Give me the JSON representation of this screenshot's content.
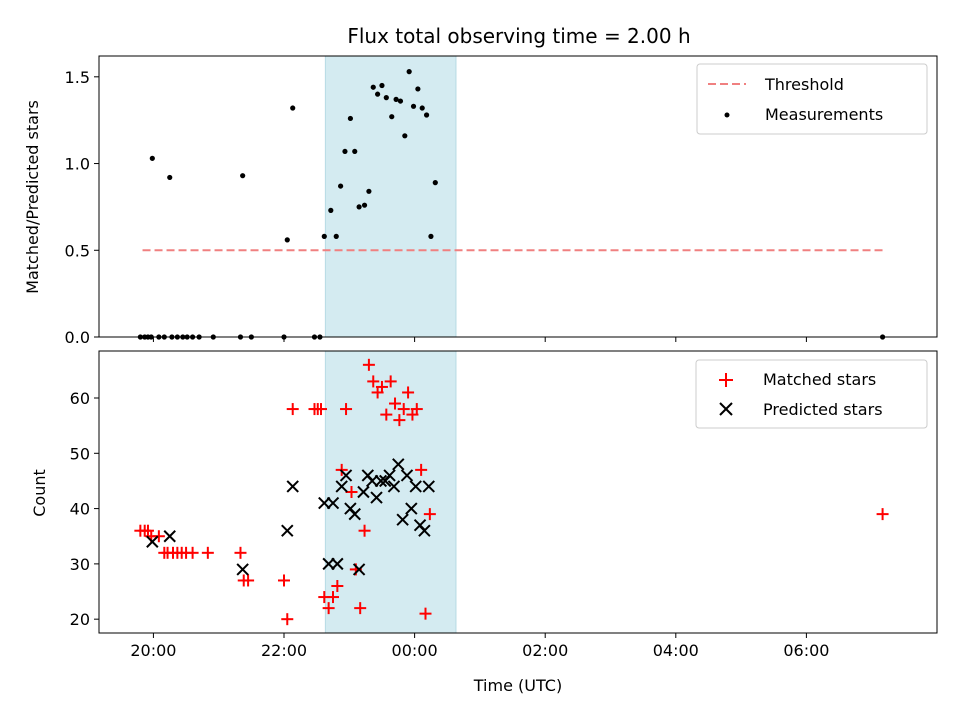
{
  "chart_data": [
    {
      "type": "scatter",
      "title": "Flux total observing time = 2.00 h",
      "xlabel": "",
      "ylabel": "Matched/Predicted stars",
      "x_axis": "time",
      "xlim": [
        "19:10",
        "08:00"
      ],
      "ylim": [
        0,
        1.62
      ],
      "yticks": [
        0.0,
        0.5,
        1.0,
        1.5
      ],
      "ytick_labels": [
        "0.0",
        "0.5",
        "1.0",
        "1.5"
      ],
      "shaded_window": [
        "22:38",
        "00:38"
      ],
      "shade_color": "#d4ebf1",
      "legend_position": "top-right",
      "series": [
        {
          "name": "Threshold",
          "style": "dashed-line",
          "color": "#f08080",
          "points": [
            [
              "19:50",
              0.5
            ],
            [
              "07:10",
              0.5
            ]
          ]
        },
        {
          "name": "Measurements",
          "style": "dot",
          "color": "#000000",
          "points": [
            [
              "19:48",
              0
            ],
            [
              "19:52",
              0
            ],
            [
              "19:55",
              0
            ],
            [
              "19:58",
              0
            ],
            [
              "20:05",
              0
            ],
            [
              "20:10",
              0
            ],
            [
              "20:17",
              0
            ],
            [
              "20:22",
              0
            ],
            [
              "20:27",
              0
            ],
            [
              "20:31",
              0
            ],
            [
              "20:36",
              0
            ],
            [
              "20:42",
              0
            ],
            [
              "20:55",
              0
            ],
            [
              "21:20",
              0
            ],
            [
              "21:30",
              0
            ],
            [
              "22:00",
              0
            ],
            [
              "22:28",
              0
            ],
            [
              "22:33",
              0
            ],
            [
              "07:10",
              0
            ],
            [
              "19:59",
              1.03
            ],
            [
              "20:15",
              0.92
            ],
            [
              "21:22",
              0.93
            ],
            [
              "22:03",
              0.56
            ],
            [
              "22:08",
              1.32
            ],
            [
              "22:37",
              0.58
            ],
            [
              "22:43",
              0.73
            ],
            [
              "22:48",
              0.58
            ],
            [
              "22:52",
              0.87
            ],
            [
              "22:56",
              1.07
            ],
            [
              "23:01",
              1.26
            ],
            [
              "23:05",
              1.07
            ],
            [
              "23:09",
              0.75
            ],
            [
              "23:14",
              0.76
            ],
            [
              "23:18",
              0.84
            ],
            [
              "23:22",
              1.44
            ],
            [
              "23:26",
              1.4
            ],
            [
              "23:30",
              1.45
            ],
            [
              "23:34",
              1.38
            ],
            [
              "23:39",
              1.27
            ],
            [
              "23:43",
              1.37
            ],
            [
              "23:47",
              1.36
            ],
            [
              "23:51",
              1.16
            ],
            [
              "23:55",
              1.53
            ],
            [
              "23:59",
              1.33
            ],
            [
              "00:03",
              1.43
            ],
            [
              "00:07",
              1.32
            ],
            [
              "00:11",
              1.28
            ],
            [
              "00:15",
              0.58
            ],
            [
              "00:19",
              0.89
            ]
          ]
        }
      ]
    },
    {
      "type": "scatter",
      "title": "",
      "xlabel": "Time (UTC)",
      "ylabel": "Count",
      "x_axis": "time",
      "xlim": [
        "19:10",
        "08:00"
      ],
      "ylim": [
        17.5,
        68.5
      ],
      "yticks": [
        20,
        30,
        40,
        50,
        60
      ],
      "ytick_labels": [
        "20",
        "30",
        "40",
        "50",
        "60"
      ],
      "xticks": [
        "20:00",
        "22:00",
        "00:00",
        "02:00",
        "04:00",
        "06:00"
      ],
      "xtick_labels": [
        "20:00",
        "22:00",
        "00:00",
        "02:00",
        "04:00",
        "06:00"
      ],
      "shaded_window": [
        "22:38",
        "00:38"
      ],
      "shade_color": "#d4ebf1",
      "legend_position": "top-right",
      "series": [
        {
          "name": "Matched stars",
          "style": "plus",
          "color": "#ff0000",
          "points": [
            [
              "19:48",
              36
            ],
            [
              "19:52",
              36
            ],
            [
              "19:55",
              36
            ],
            [
              "19:58",
              35
            ],
            [
              "20:05",
              35
            ],
            [
              "20:10",
              32
            ],
            [
              "20:13",
              32
            ],
            [
              "20:18",
              32
            ],
            [
              "20:22",
              32
            ],
            [
              "20:26",
              32
            ],
            [
              "20:30",
              32
            ],
            [
              "20:36",
              32
            ],
            [
              "20:50",
              32
            ],
            [
              "21:20",
              32
            ],
            [
              "21:23",
              27
            ],
            [
              "21:27",
              27
            ],
            [
              "22:00",
              27
            ],
            [
              "22:03",
              20
            ],
            [
              "22:08",
              58
            ],
            [
              "22:28",
              58
            ],
            [
              "22:31",
              58
            ],
            [
              "22:34",
              58
            ],
            [
              "22:37",
              24
            ],
            [
              "22:41",
              22
            ],
            [
              "22:45",
              24
            ],
            [
              "22:49",
              26
            ],
            [
              "22:53",
              47
            ],
            [
              "22:57",
              58
            ],
            [
              "23:02",
              43
            ],
            [
              "23:06",
              29
            ],
            [
              "23:10",
              22
            ],
            [
              "23:14",
              36
            ],
            [
              "23:18",
              66
            ],
            [
              "23:22",
              63
            ],
            [
              "23:26",
              61
            ],
            [
              "23:30",
              62
            ],
            [
              "23:34",
              57
            ],
            [
              "23:38",
              63
            ],
            [
              "23:42",
              59
            ],
            [
              "23:46",
              56
            ],
            [
              "23:50",
              58
            ],
            [
              "23:54",
              61
            ],
            [
              "23:58",
              57
            ],
            [
              "00:02",
              58
            ],
            [
              "00:06",
              47
            ],
            [
              "00:10",
              21
            ],
            [
              "00:14",
              39
            ],
            [
              "07:10",
              39
            ]
          ]
        },
        {
          "name": "Predicted stars",
          "style": "x",
          "color": "#000000",
          "points": [
            [
              "19:59",
              34
            ],
            [
              "20:15",
              35
            ],
            [
              "21:22",
              29
            ],
            [
              "22:03",
              36
            ],
            [
              "22:08",
              44
            ],
            [
              "22:37",
              41
            ],
            [
              "22:41",
              30
            ],
            [
              "22:45",
              41
            ],
            [
              "22:49",
              30
            ],
            [
              "22:53",
              44
            ],
            [
              "22:57",
              46
            ],
            [
              "23:01",
              40
            ],
            [
              "23:05",
              39
            ],
            [
              "23:09",
              29
            ],
            [
              "23:13",
              43
            ],
            [
              "23:17",
              46
            ],
            [
              "23:21",
              45
            ],
            [
              "23:25",
              42
            ],
            [
              "23:29",
              45
            ],
            [
              "23:33",
              45
            ],
            [
              "23:37",
              46
            ],
            [
              "23:41",
              44
            ],
            [
              "23:45",
              48
            ],
            [
              "23:49",
              38
            ],
            [
              "23:53",
              46
            ],
            [
              "23:57",
              40
            ],
            [
              "00:01",
              44
            ],
            [
              "00:05",
              37
            ],
            [
              "00:09",
              36
            ],
            [
              "00:13",
              44
            ]
          ]
        }
      ]
    }
  ]
}
